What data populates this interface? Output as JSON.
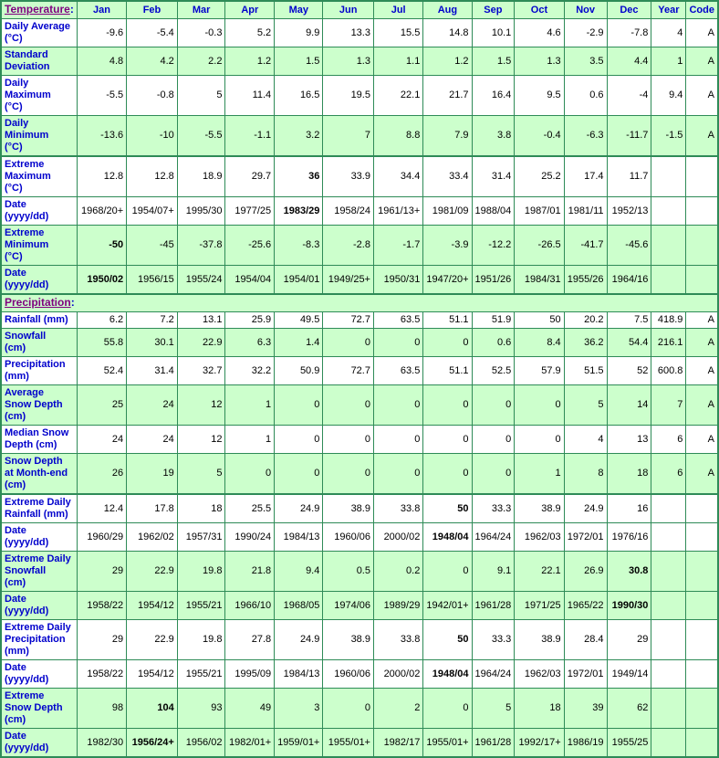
{
  "colors": {
    "border_green": "#2E8B57",
    "row_green": "#CCFFCC",
    "row_white": "#FFFFFF",
    "label_blue": "#0000CC",
    "section_link_purple": "#800080",
    "value_black": "#000000"
  },
  "chart_data": {
    "type": "table",
    "corner": {
      "link": "Temperature",
      "colon": ":"
    },
    "columns": [
      "Jan",
      "Feb",
      "Mar",
      "Apr",
      "May",
      "Jun",
      "Jul",
      "Aug",
      "Sep",
      "Oct",
      "Nov",
      "Dec",
      "Year",
      "Code"
    ],
    "rows": [
      {
        "label": "Daily Average\n(°C)",
        "bg": "white",
        "values": [
          "-9.6",
          "-5.4",
          "-0.3",
          "5.2",
          "9.9",
          "13.3",
          "15.5",
          "14.8",
          "10.1",
          "4.6",
          "-2.9",
          "-7.8",
          "4",
          "A"
        ]
      },
      {
        "label": "Standard\nDeviation",
        "bg": "green",
        "values": [
          "4.8",
          "4.2",
          "2.2",
          "1.2",
          "1.5",
          "1.3",
          "1.1",
          "1.2",
          "1.5",
          "1.3",
          "3.5",
          "4.4",
          "1",
          "A"
        ]
      },
      {
        "label": "Daily\nMaximum\n(°C)",
        "bg": "white",
        "values": [
          "-5.5",
          "-0.8",
          "5",
          "11.4",
          "16.5",
          "19.5",
          "22.1",
          "21.7",
          "16.4",
          "9.5",
          "0.6",
          "-4",
          "9.4",
          "A"
        ]
      },
      {
        "label": "Daily\nMinimum\n(°C)",
        "bg": "green",
        "values": [
          "-13.6",
          "-10",
          "-5.5",
          "-1.1",
          "3.2",
          "7",
          "8.8",
          "7.9",
          "3.8",
          "-0.4",
          "-6.3",
          "-11.7",
          "-1.5",
          "A"
        ]
      },
      {
        "label": "Extreme\nMaximum\n(°C)",
        "bg": "white",
        "thick_top": true,
        "bold": [
          4
        ],
        "values": [
          "12.8",
          "12.8",
          "18.9",
          "29.7",
          "36",
          "33.9",
          "34.4",
          "33.4",
          "31.4",
          "25.2",
          "17.4",
          "11.7",
          "",
          ""
        ]
      },
      {
        "label": "Date\n(yyyy/dd)",
        "bg": "white",
        "bold": [
          4
        ],
        "values": [
          "1968/20+",
          "1954/07+",
          "1995/30",
          "1977/25",
          "1983/29",
          "1958/24",
          "1961/13+",
          "1981/09",
          "1988/04",
          "1987/01",
          "1981/11",
          "1952/13",
          "",
          ""
        ]
      },
      {
        "label": "Extreme\nMinimum\n(°C)",
        "bg": "green",
        "bold": [
          0
        ],
        "values": [
          "-50",
          "-45",
          "-37.8",
          "-25.6",
          "-8.3",
          "-2.8",
          "-1.7",
          "-3.9",
          "-12.2",
          "-26.5",
          "-41.7",
          "-45.6",
          "",
          ""
        ]
      },
      {
        "label": "Date\n(yyyy/dd)",
        "bg": "green",
        "bold": [
          0
        ],
        "values": [
          "1950/02",
          "1956/15",
          "1955/24",
          "1954/04",
          "1954/01",
          "1949/25+",
          "1950/31",
          "1947/20+",
          "1951/26",
          "1984/31",
          "1955/26",
          "1964/16",
          "",
          ""
        ]
      },
      {
        "section": true,
        "link": "Precipitation",
        "colon": ":",
        "bg": "green",
        "thick_top": true
      },
      {
        "label": "Rainfall (mm)",
        "bg": "white",
        "values": [
          "6.2",
          "7.2",
          "13.1",
          "25.9",
          "49.5",
          "72.7",
          "63.5",
          "51.1",
          "51.9",
          "50",
          "20.2",
          "7.5",
          "418.9",
          "A"
        ]
      },
      {
        "label": "Snowfall\n(cm)",
        "bg": "green",
        "values": [
          "55.8",
          "30.1",
          "22.9",
          "6.3",
          "1.4",
          "0",
          "0",
          "0",
          "0.6",
          "8.4",
          "36.2",
          "54.4",
          "216.1",
          "A"
        ]
      },
      {
        "label": "Precipitation\n(mm)",
        "bg": "white",
        "values": [
          "52.4",
          "31.4",
          "32.7",
          "32.2",
          "50.9",
          "72.7",
          "63.5",
          "51.1",
          "52.5",
          "57.9",
          "51.5",
          "52",
          "600.8",
          "A"
        ]
      },
      {
        "label": "Average\nSnow Depth\n(cm)",
        "bg": "green",
        "values": [
          "25",
          "24",
          "12",
          "1",
          "0",
          "0",
          "0",
          "0",
          "0",
          "0",
          "5",
          "14",
          "7",
          "A"
        ]
      },
      {
        "label": "Median Snow\nDepth (cm)",
        "bg": "white",
        "values": [
          "24",
          "24",
          "12",
          "1",
          "0",
          "0",
          "0",
          "0",
          "0",
          "0",
          "4",
          "13",
          "6",
          "A"
        ]
      },
      {
        "label": "Snow Depth\nat Month-end\n(cm)",
        "bg": "green",
        "values": [
          "26",
          "19",
          "5",
          "0",
          "0",
          "0",
          "0",
          "0",
          "0",
          "1",
          "8",
          "18",
          "6",
          "A"
        ]
      },
      {
        "label": "Extreme Daily\nRainfall (mm)",
        "bg": "white",
        "thick_top": true,
        "bold": [
          7
        ],
        "values": [
          "12.4",
          "17.8",
          "18",
          "25.5",
          "24.9",
          "38.9",
          "33.8",
          "50",
          "33.3",
          "38.9",
          "24.9",
          "16",
          "",
          ""
        ]
      },
      {
        "label": "Date\n(yyyy/dd)",
        "bg": "white",
        "bold": [
          7
        ],
        "values": [
          "1960/29",
          "1962/02",
          "1957/31",
          "1990/24",
          "1984/13",
          "1960/06",
          "2000/02",
          "1948/04",
          "1964/24",
          "1962/03",
          "1972/01",
          "1976/16",
          "",
          ""
        ]
      },
      {
        "label": "Extreme Daily\nSnowfall\n(cm)",
        "bg": "green",
        "bold": [
          11
        ],
        "values": [
          "29",
          "22.9",
          "19.8",
          "21.8",
          "9.4",
          "0.5",
          "0.2",
          "0",
          "9.1",
          "22.1",
          "26.9",
          "30.8",
          "",
          ""
        ]
      },
      {
        "label": "Date\n(yyyy/dd)",
        "bg": "green",
        "bold": [
          11
        ],
        "values": [
          "1958/22",
          "1954/12",
          "1955/21",
          "1966/10",
          "1968/05",
          "1974/06",
          "1989/29",
          "1942/01+",
          "1961/28",
          "1971/25",
          "1965/22",
          "1990/30",
          "",
          ""
        ]
      },
      {
        "label": "Extreme Daily\nPrecipitation\n(mm)",
        "bg": "white",
        "bold": [
          7
        ],
        "values": [
          "29",
          "22.9",
          "19.8",
          "27.8",
          "24.9",
          "38.9",
          "33.8",
          "50",
          "33.3",
          "38.9",
          "28.4",
          "29",
          "",
          ""
        ]
      },
      {
        "label": "Date\n(yyyy/dd)",
        "bg": "white",
        "bold": [
          7
        ],
        "values": [
          "1958/22",
          "1954/12",
          "1955/21",
          "1995/09",
          "1984/13",
          "1960/06",
          "2000/02",
          "1948/04",
          "1964/24",
          "1962/03",
          "1972/01",
          "1949/14",
          "",
          ""
        ]
      },
      {
        "label": "Extreme\nSnow Depth\n(cm)",
        "bg": "green",
        "bold": [
          1
        ],
        "values": [
          "98",
          "104",
          "93",
          "49",
          "3",
          "0",
          "2",
          "0",
          "5",
          "18",
          "39",
          "62",
          "",
          ""
        ]
      },
      {
        "label": "Date\n(yyyy/dd)",
        "bg": "green",
        "bold": [
          1
        ],
        "values": [
          "1982/30",
          "1956/24+",
          "1956/02",
          "1982/01+",
          "1959/01+",
          "1955/01+",
          "1982/17",
          "1955/01+",
          "1961/28",
          "1992/17+",
          "1986/19",
          "1955/25",
          "",
          ""
        ]
      }
    ]
  }
}
